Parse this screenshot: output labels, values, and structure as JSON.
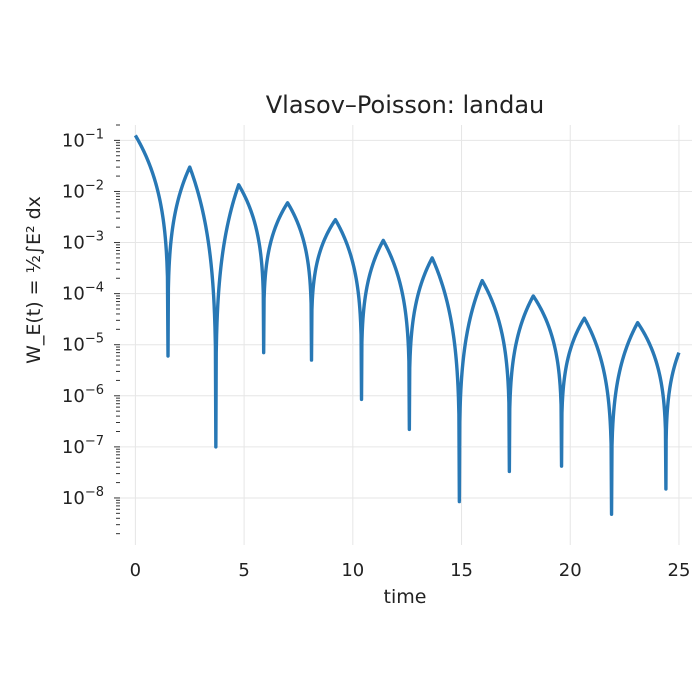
{
  "chart_data": {
    "type": "line",
    "title": "Vlasov–Poisson: landau",
    "xlabel": "time",
    "ylabel": "W_E(t) = ½∫E² dx",
    "yscale": "log",
    "xlim": [
      -0.8,
      25.6
    ],
    "ylim": [
      1.2e-09,
      0.2
    ],
    "x_ticks": [
      0,
      5,
      10,
      15,
      20,
      25
    ],
    "x_tick_labels": [
      "0",
      "5",
      "10",
      "15",
      "20",
      "25"
    ],
    "y_ticks": [
      1e-08,
      1e-07,
      1e-06,
      1e-05,
      0.0001,
      0.001,
      0.01,
      0.1
    ],
    "y_tick_labels": [
      {
        "base": "10",
        "exp": "−8"
      },
      {
        "base": "10",
        "exp": "−7"
      },
      {
        "base": "10",
        "exp": "−6"
      },
      {
        "base": "10",
        "exp": "−5"
      },
      {
        "base": "10",
        "exp": "−4"
      },
      {
        "base": "10",
        "exp": "−3"
      },
      {
        "base": "10",
        "exp": "−2"
      },
      {
        "base": "10",
        "exp": "−1"
      }
    ],
    "grid": true,
    "series": [
      {
        "color": "#2878b5",
        "start": {
          "x": 0.0,
          "y": 0.125
        },
        "peaks": [
          {
            "x": 2.5,
            "y": 0.03
          },
          {
            "x": 4.75,
            "y": 0.0135
          },
          {
            "x": 7.0,
            "y": 0.006
          },
          {
            "x": 9.2,
            "y": 0.0028
          },
          {
            "x": 11.4,
            "y": 0.0011
          },
          {
            "x": 13.65,
            "y": 0.0005
          },
          {
            "x": 15.95,
            "y": 0.00018
          },
          {
            "x": 18.3,
            "y": 9e-05
          },
          {
            "x": 20.65,
            "y": 3.3e-05
          },
          {
            "x": 23.1,
            "y": 2.7e-05
          }
        ],
        "troughs": [
          {
            "x": 1.5,
            "y": 6e-06
          },
          {
            "x": 3.7,
            "y": 1e-07
          },
          {
            "x": 5.9,
            "y": 7e-06
          },
          {
            "x": 8.1,
            "y": 5e-06
          },
          {
            "x": 10.4,
            "y": 8.5e-07
          },
          {
            "x": 12.6,
            "y": 2.2e-07
          },
          {
            "x": 14.9,
            "y": 8.5e-09
          },
          {
            "x": 17.2,
            "y": 3.3e-08
          },
          {
            "x": 19.6,
            "y": 4.2e-08
          },
          {
            "x": 21.9,
            "y": 4.8e-09
          },
          {
            "x": 24.4,
            "y": 1.5e-08
          }
        ],
        "end": {
          "x": 25.0,
          "y": 7e-06
        }
      }
    ]
  }
}
